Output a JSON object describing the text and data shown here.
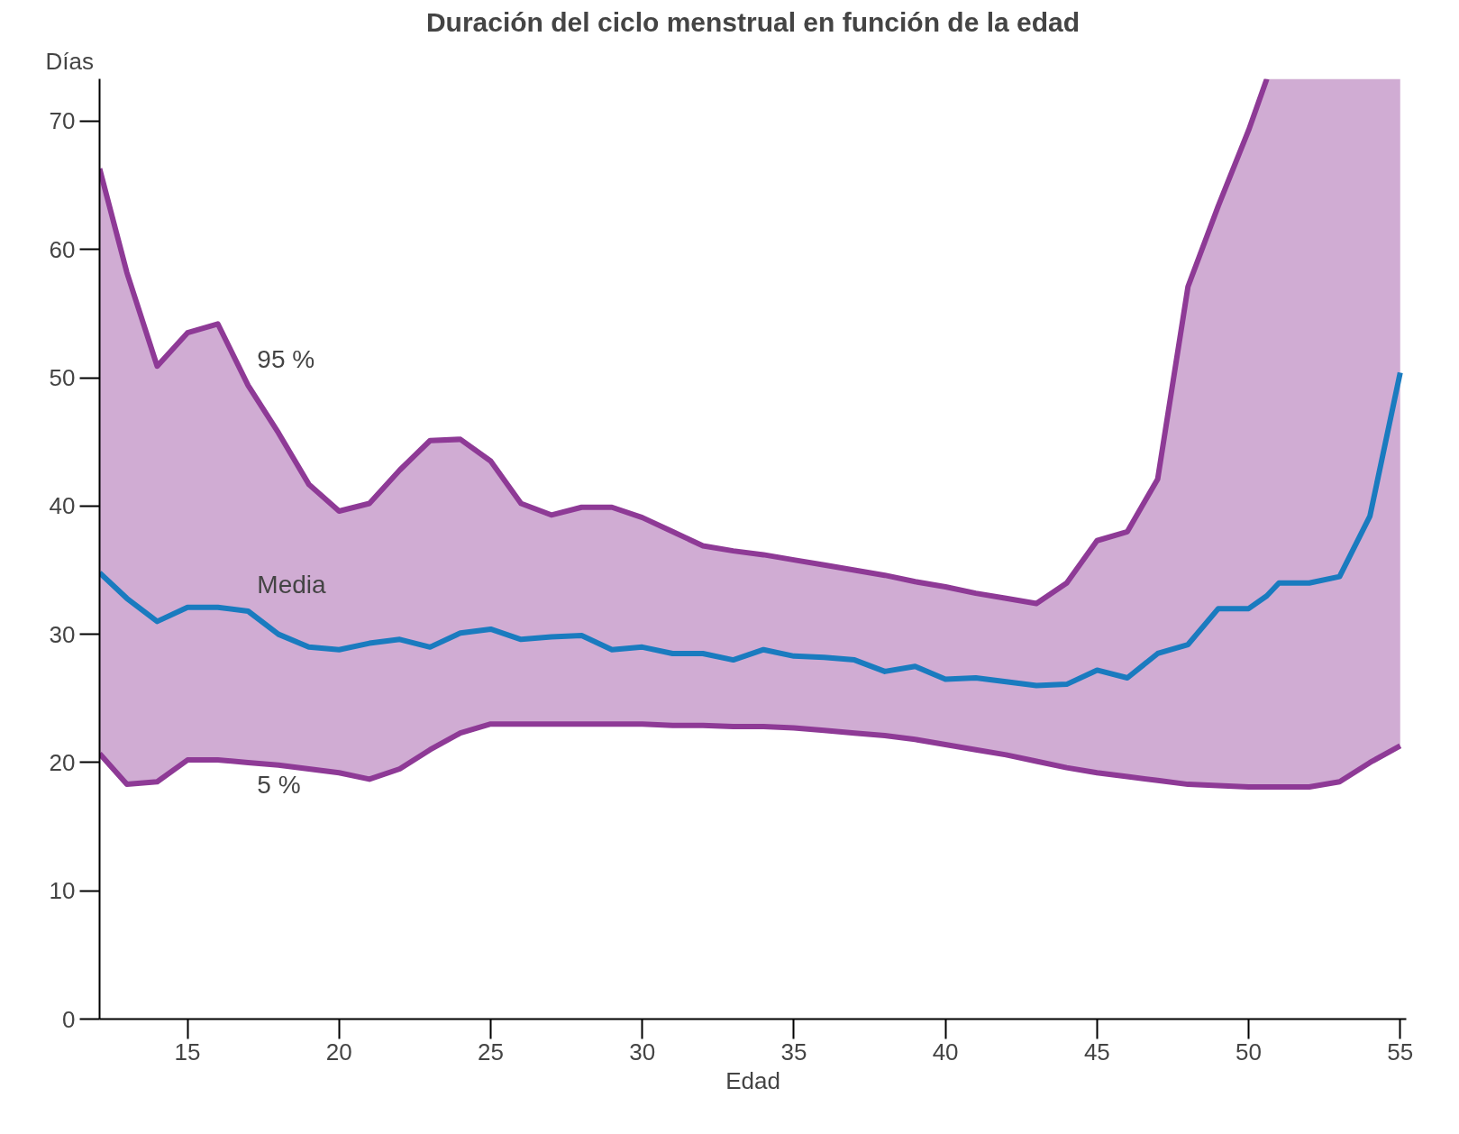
{
  "chart_data": {
    "type": "line",
    "title": "Duración del ciclo menstrual en función de la edad",
    "xlabel": "Edad",
    "ylabel": "Días",
    "xlim": [
      12.1,
      55.2
    ],
    "ylim": [
      0,
      73.3
    ],
    "xticks": [
      15,
      20,
      25,
      30,
      35,
      40,
      45,
      50,
      55
    ],
    "yticks": [
      0,
      10,
      20,
      30,
      40,
      50,
      60,
      70
    ],
    "grid": false,
    "legend": false,
    "x": [
      12.1,
      13,
      14,
      15,
      16,
      17,
      18,
      19,
      20,
      21,
      22,
      23,
      24,
      25,
      26,
      27,
      28,
      29,
      30,
      31,
      32,
      33,
      34,
      35,
      36,
      37,
      38,
      39,
      40,
      41,
      42,
      43,
      44,
      45,
      46,
      47,
      48,
      49,
      50,
      50.6,
      51,
      52,
      53,
      54,
      55
    ],
    "series": [
      {
        "name": "95 %",
        "color": "#8e3a96",
        "x": [
          12.1,
          13,
          14,
          15,
          16,
          17,
          18,
          19,
          20,
          21,
          22,
          23,
          24,
          25,
          26,
          27,
          28,
          29,
          30,
          31,
          32,
          33,
          34,
          35,
          36,
          37,
          38,
          39,
          40,
          41,
          42,
          43,
          44,
          45,
          46,
          47,
          48,
          49,
          50,
          50.6
        ],
        "values": [
          66.3,
          58.2,
          50.9,
          53.5,
          54.2,
          49.4,
          45.7,
          41.7,
          39.6,
          40.2,
          42.8,
          45.1,
          45.2,
          43.5,
          40.2,
          39.3,
          39.9,
          39.9,
          39.1,
          38,
          36.9,
          36.5,
          36.2,
          35.8,
          35.4,
          35,
          34.6,
          34.1,
          33.7,
          33.2,
          32.8,
          32.4,
          34,
          37.3,
          38,
          42.1,
          57.1,
          63.4,
          69.3,
          73.3
        ]
      },
      {
        "name": "Media",
        "color": "#1a7bbf",
        "values": [
          34.8,
          32.8,
          31,
          32.1,
          32.1,
          31.8,
          30,
          29,
          28.8,
          29.3,
          29.6,
          29,
          30.1,
          30.4,
          29.6,
          29.8,
          29.9,
          28.8,
          29,
          28.5,
          28.5,
          28,
          28.8,
          28.3,
          28.2,
          28,
          27.1,
          27.5,
          26.5,
          26.6,
          26.3,
          26,
          26.1,
          27.2,
          26.6,
          28.5,
          29.2,
          32,
          32,
          33,
          34,
          34,
          34.5,
          39.2,
          50.4
        ],
        "lower": [
          20.7,
          18.3,
          18.5,
          20.2,
          20.2,
          20,
          19.8,
          19.5,
          19.2,
          18.7,
          19.5,
          21,
          22.3,
          23,
          23,
          23,
          23,
          23,
          23,
          22.9,
          22.9,
          22.8,
          22.8,
          22.7,
          22.5,
          22.3,
          22.1,
          21.8,
          21.4,
          21,
          20.6,
          20.1,
          19.6,
          19.2,
          18.9,
          18.6,
          18.3,
          18.2,
          18.1,
          18.1,
          18.1,
          18.1,
          18.5,
          20,
          21.3
        ],
        "upper": [
          66.3,
          58.2,
          50.9,
          53.5,
          54.2,
          49.4,
          45.7,
          41.7,
          39.6,
          40.2,
          42.8,
          45.1,
          45.2,
          43.5,
          40.2,
          39.3,
          39.9,
          39.9,
          39.1,
          38,
          36.9,
          36.5,
          36.2,
          35.8,
          35.4,
          35,
          34.6,
          34.1,
          33.7,
          33.2,
          32.8,
          32.4,
          34,
          37.3,
          38,
          42.1,
          57.1,
          63.4,
          69.3,
          73.3,
          73.3,
          73.3,
          73.3,
          73.3,
          73.3
        ]
      },
      {
        "name": "5 %",
        "color": "#8e3a96",
        "values": [
          20.7,
          18.3,
          18.5,
          20.2,
          20.2,
          20,
          19.8,
          19.5,
          19.2,
          18.7,
          19.5,
          21,
          22.3,
          23,
          23,
          23,
          23,
          23,
          23,
          22.9,
          22.9,
          22.8,
          22.8,
          22.7,
          22.5,
          22.3,
          22.1,
          21.8,
          21.4,
          21,
          20.6,
          20.1,
          19.6,
          19.2,
          18.9,
          18.6,
          18.3,
          18.2,
          18.1,
          18.1,
          18.1,
          18.1,
          18.5,
          20,
          21.3
        ]
      }
    ]
  }
}
